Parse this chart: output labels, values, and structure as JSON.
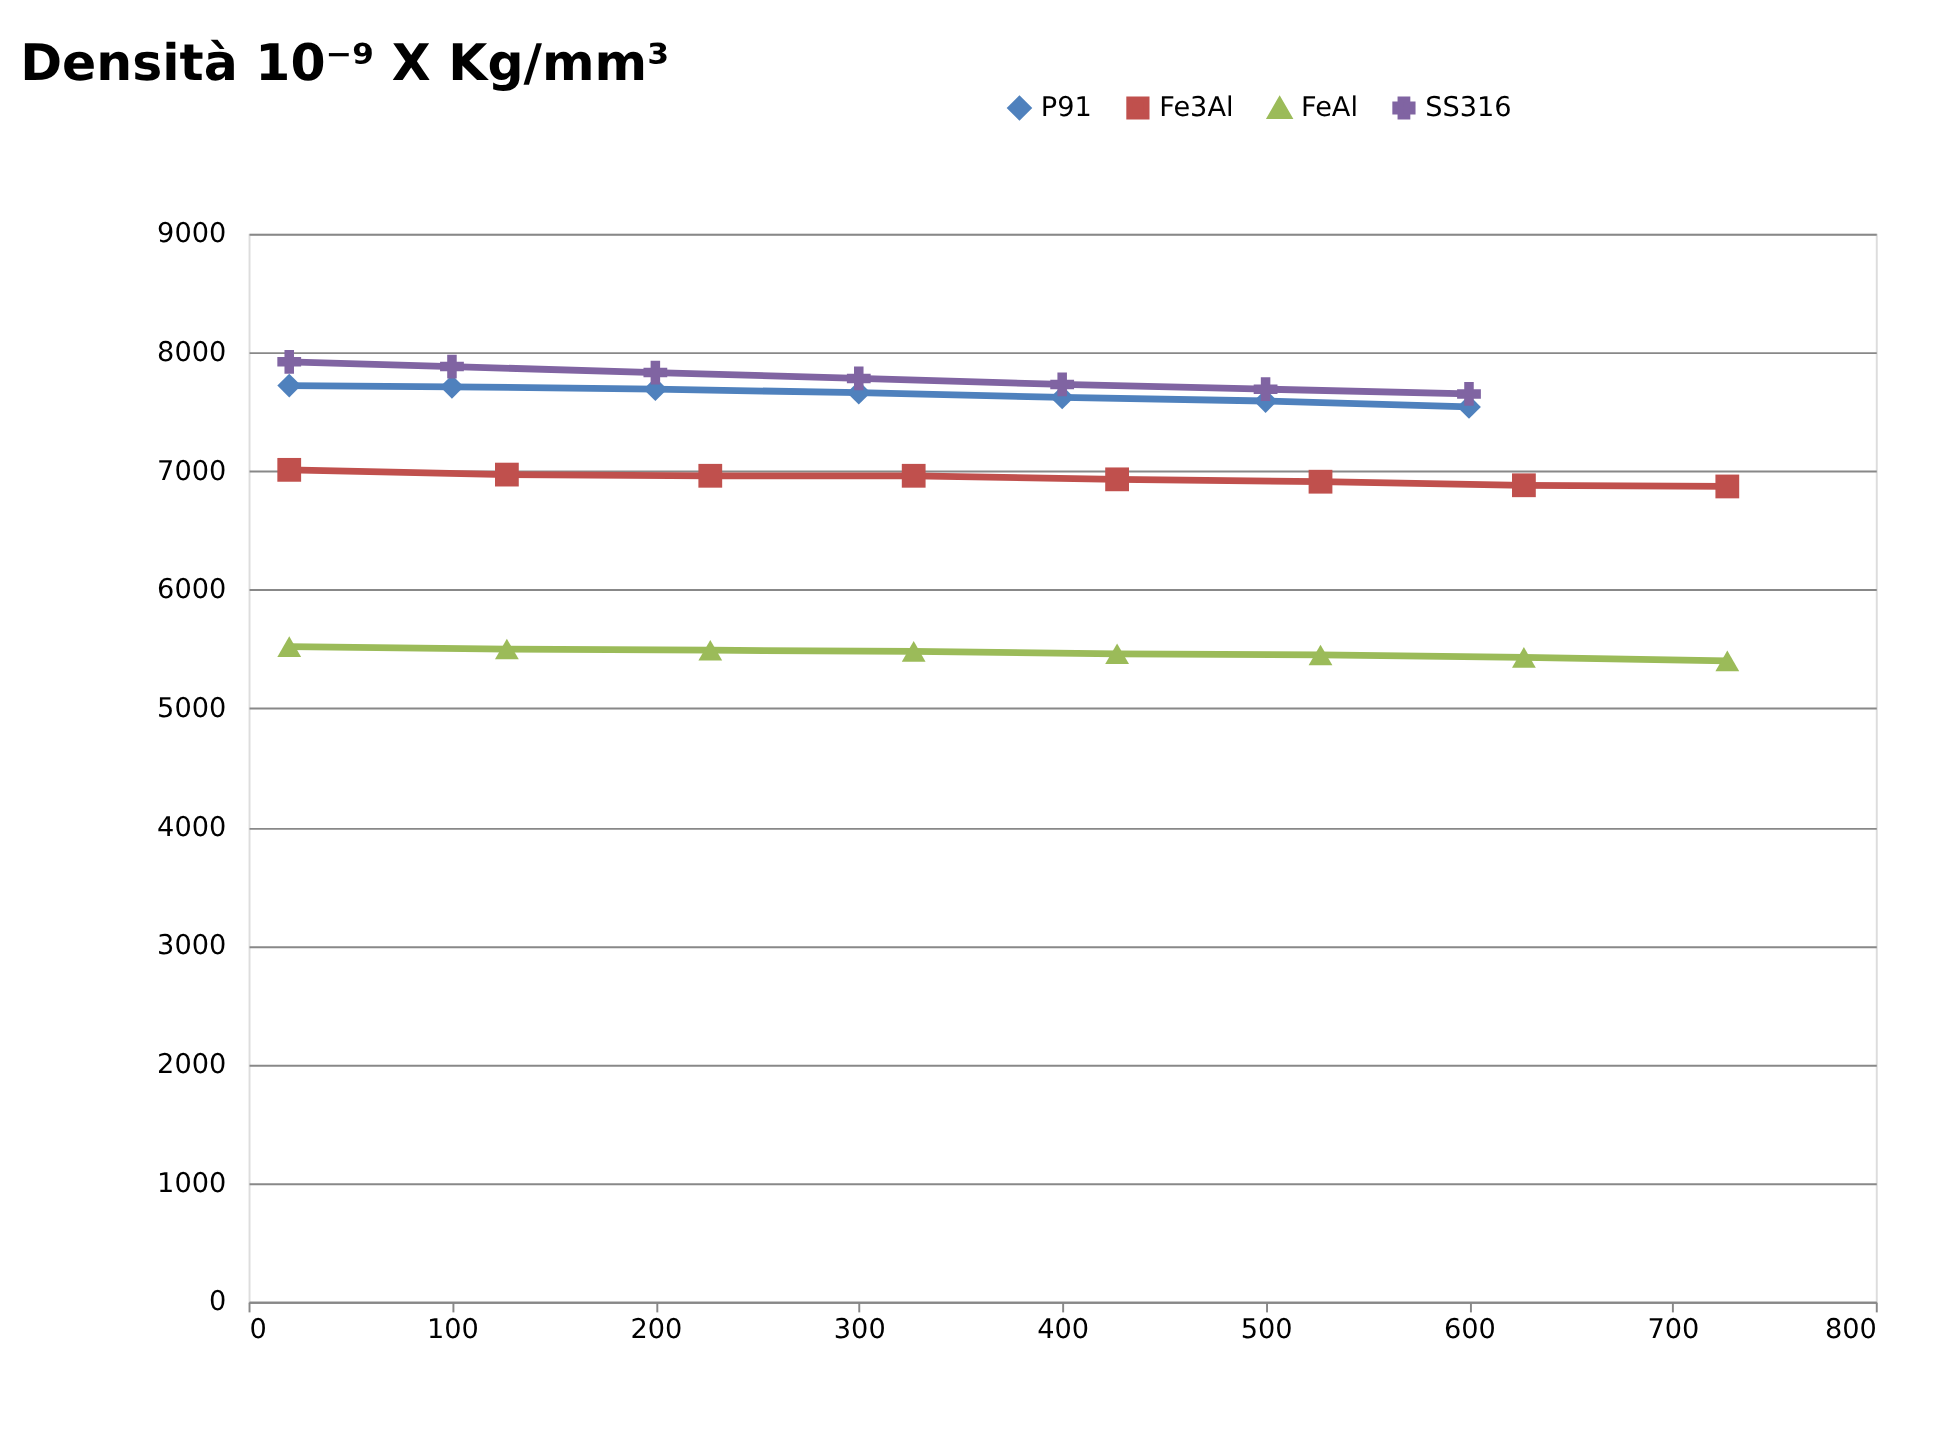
{
  "chart_data": {
    "type": "line",
    "title": "Densità 10⁻⁹ X  Kg/mm³",
    "xlim": [
      0,
      800
    ],
    "xticks": [
      0,
      100,
      200,
      300,
      400,
      500,
      600,
      700,
      800
    ],
    "ylim": [
      0,
      9000
    ],
    "yticks": [
      0,
      1000,
      2000,
      3000,
      4000,
      5000,
      6000,
      7000,
      8000,
      9000
    ],
    "grid": "y",
    "legend": "top right",
    "line_style": "solid",
    "series": [
      {
        "name": "P91",
        "color": "#4f81bd",
        "marker": "diamond",
        "x": [
          20,
          100,
          200,
          300,
          400,
          500,
          600
        ],
        "values": [
          7720,
          7710,
          7690,
          7660,
          7620,
          7590,
          7540
        ]
      },
      {
        "name": "Fe3Al",
        "color": "#c0504d",
        "marker": "square",
        "x": [
          20,
          127,
          227,
          327,
          427,
          527,
          627,
          727
        ],
        "values": [
          7010,
          6970,
          6960,
          6960,
          6930,
          6910,
          6880,
          6870
        ]
      },
      {
        "name": "FeAl",
        "color": "#9bbb59",
        "marker": "triangle",
        "x": [
          20,
          127,
          227,
          327,
          427,
          527,
          627,
          727
        ],
        "values": [
          5520,
          5500,
          5490,
          5480,
          5460,
          5450,
          5430,
          5400
        ]
      },
      {
        "name": "SS316",
        "color": "#8064a2",
        "marker": "cross",
        "x": [
          20,
          100,
          200,
          300,
          400,
          500,
          600
        ],
        "values": [
          7920,
          7880,
          7830,
          7780,
          7730,
          7690,
          7650
        ]
      }
    ]
  }
}
